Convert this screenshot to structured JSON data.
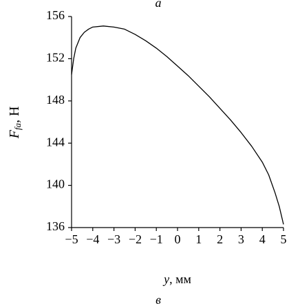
{
  "chart_data": {
    "type": "line",
    "title": "а",
    "caption": "в",
    "x_label": {
      "main": "y",
      "rest": ", мм"
    },
    "y_label": {
      "main": "F",
      "sub": "fa",
      "rest": ", Н"
    },
    "x": [
      -5,
      -4.9,
      -4.8,
      -4.6,
      -4.4,
      -4.2,
      -4,
      -3.5,
      -3,
      -2.5,
      -2,
      -1.5,
      -1,
      -0.5,
      0,
      0.5,
      1,
      1.5,
      2,
      2.5,
      3,
      3.5,
      4,
      4.3,
      4.6,
      4.8,
      5
    ],
    "series": [
      {
        "name": "F",
        "color": "#000000",
        "values": [
          150.5,
          152.0,
          153.0,
          154.0,
          154.5,
          154.8,
          155.0,
          155.1,
          155.0,
          154.8,
          154.3,
          153.7,
          153.0,
          152.2,
          151.3,
          150.4,
          149.4,
          148.4,
          147.3,
          146.2,
          145.0,
          143.7,
          142.2,
          141.0,
          139.3,
          138.0,
          136.3
        ]
      }
    ],
    "xlim": [
      -5,
      5
    ],
    "ylim": [
      136,
      156
    ],
    "xticks": [
      {
        "value": -5,
        "label": "−5"
      },
      {
        "value": -4,
        "label": "−4"
      },
      {
        "value": -3,
        "label": "−3"
      },
      {
        "value": -2,
        "label": "−2"
      },
      {
        "value": -1,
        "label": "−1"
      },
      0,
      1,
      2,
      3,
      4,
      5
    ],
    "yticks": [
      136,
      140,
      144,
      148,
      152,
      156
    ],
    "grid": false
  }
}
